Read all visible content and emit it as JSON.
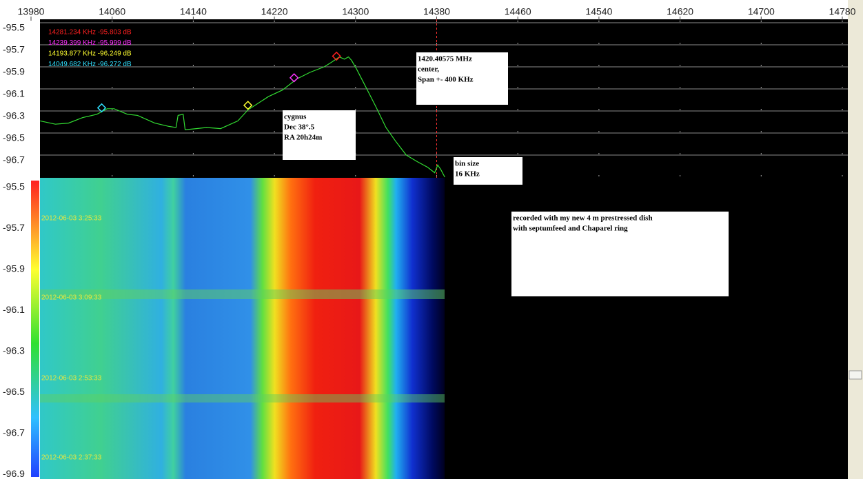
{
  "chart_data": {
    "type": "line",
    "color": "#33dd33",
    "x": [
      13989,
      14004,
      14017,
      14031,
      14045,
      14055,
      14062,
      14075,
      14085,
      14102,
      14116,
      14123,
      14125,
      14130,
      14132,
      14143,
      14153,
      14167,
      14184,
      14194,
      14204,
      14214,
      14228,
      14242,
      14255,
      14269,
      14276,
      14284,
      14289,
      14293,
      14296,
      14301,
      14310,
      14320,
      14330,
      14340,
      14350,
      14361,
      14371,
      14378,
      14381,
      14384,
      14388
    ],
    "values": [
      -96.39,
      -96.42,
      -96.41,
      -96.36,
      -96.33,
      -96.28,
      -96.28,
      -96.33,
      -96.34,
      -96.41,
      -96.44,
      -96.45,
      -96.34,
      -96.33,
      -96.47,
      -96.46,
      -96.45,
      -96.46,
      -96.39,
      -96.29,
      -96.23,
      -96.17,
      -96.11,
      -96.01,
      -95.95,
      -95.9,
      -95.86,
      -95.81,
      -95.83,
      -95.81,
      -95.84,
      -95.92,
      -96.08,
      -96.26,
      -96.45,
      -96.58,
      -96.7,
      -96.76,
      -96.81,
      -96.86,
      -96.79,
      -96.83,
      -96.9
    ],
    "xlim": [
      13980,
      14780
    ],
    "xticks": [
      13980,
      14060,
      14140,
      14220,
      14300,
      14380,
      14460,
      14540,
      14620,
      14700,
      14780
    ],
    "ylim": [
      -96.9,
      -95.5
    ],
    "yticks": [
      -95.5,
      -95.7,
      -95.9,
      -96.1,
      -96.3,
      -96.5,
      -96.7
    ],
    "grid": true,
    "center_line": 14380,
    "markers": [
      {
        "label": "14281.234 KHz -95.803 dB",
        "color": "#ff2020",
        "x": 14281.234,
        "y": -95.803
      },
      {
        "label": "14239.399 KHz -95.999 dB",
        "color": "#ff30ff",
        "x": 14239.399,
        "y": -95.999
      },
      {
        "label": "14193.877 KHz -96.249 dB",
        "color": "#ffff30",
        "x": 14193.877,
        "y": -96.249
      },
      {
        "label": "14049.682 KHz -96.272 dB",
        "color": "#30e0ff",
        "x": 14049.682,
        "y": -96.272
      }
    ],
    "annotations": [
      {
        "lines": [
          "1420.40575 MHz",
          "center,",
          "Span +- 400 KHz"
        ]
      },
      {
        "lines": [
          "cygnus",
          "Dec 38°.5",
          "RA 20h24m"
        ]
      },
      {
        "lines": [
          "bin size",
          "16 KHz"
        ]
      },
      {
        "lines": [
          "recorded with my new 4 m prestressed dish",
          "with septumfeed and Chaparel ring"
        ]
      }
    ],
    "waterfall_scale": [
      "-95.5",
      "-95.7",
      "-95.9",
      "-96.1",
      "-96.3",
      "-96.5",
      "-96.7",
      "-96.9"
    ],
    "timestamps": [
      "2012-06-03 3:25:33",
      "2012-06-03 3:09:33",
      "2012-06-03 2:53:33",
      "2012-06-03 2:37:33"
    ]
  }
}
